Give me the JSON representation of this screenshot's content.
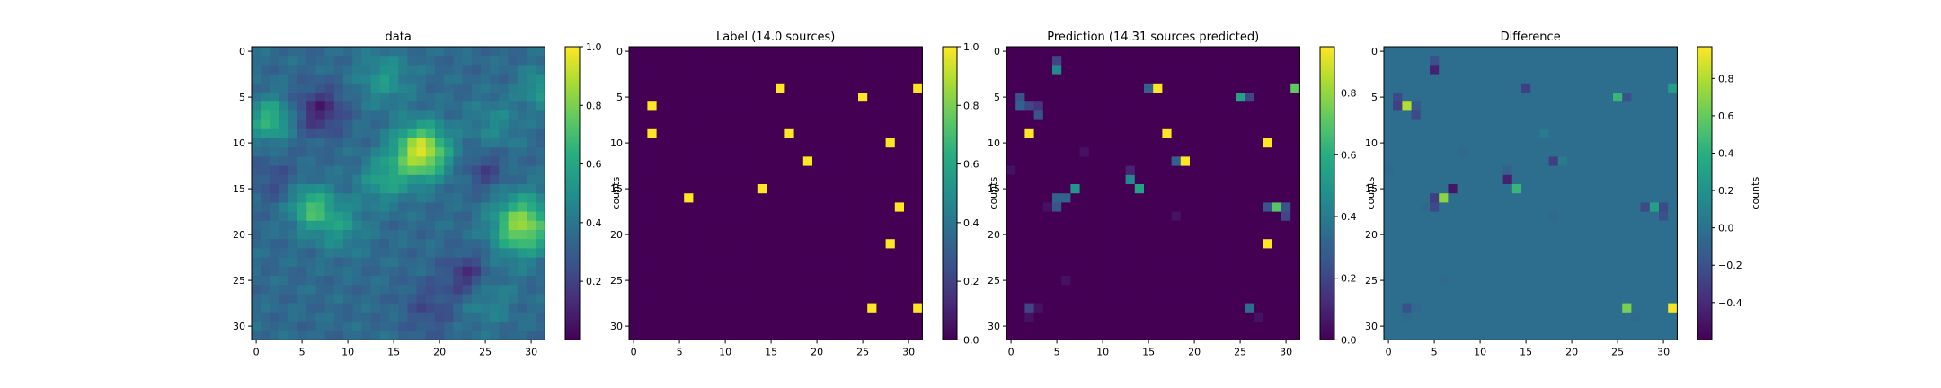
{
  "chart_data": [
    {
      "type": "heatmap",
      "title": "data",
      "grid": "32x32",
      "colormap": "viridis",
      "xlim": [
        0,
        31
      ],
      "ylim": [
        31,
        0
      ],
      "xticks": [
        0,
        5,
        10,
        15,
        20,
        25,
        30
      ],
      "yticks": [
        0,
        5,
        10,
        15,
        20,
        25,
        30
      ],
      "field": {
        "baseline": 0.35,
        "blobs": [
          {
            "x": 18,
            "y": 11,
            "amp": 0.6,
            "sigma": 2.0
          },
          {
            "x": 29,
            "y": 19,
            "amp": 0.5,
            "sigma": 2.2
          },
          {
            "x": 1.5,
            "y": 7.5,
            "amp": 0.32,
            "sigma": 1.6
          },
          {
            "x": 6,
            "y": 17,
            "amp": 0.32,
            "sigma": 1.6
          },
          {
            "x": 14,
            "y": 14,
            "amp": 0.22,
            "sigma": 1.8
          },
          {
            "x": 9,
            "y": 19,
            "amp": 0.18,
            "sigma": 2.0
          },
          {
            "x": 14,
            "y": 3,
            "amp": 0.18,
            "sigma": 2.0
          },
          {
            "x": 31,
            "y": 4,
            "amp": 0.2,
            "sigma": 1.5
          },
          {
            "x": 26,
            "y": 8,
            "amp": 0.12,
            "sigma": 2.0
          },
          {
            "x": 25,
            "y": 27,
            "amp": 0.12,
            "sigma": 2.0
          },
          {
            "x": 7,
            "y": 6.5,
            "amp": -0.25,
            "sigma": 1.8
          },
          {
            "x": 23,
            "y": 24.5,
            "amp": -0.22,
            "sigma": 1.6
          },
          {
            "x": 19,
            "y": 28,
            "amp": -0.12,
            "sigma": 2.0
          },
          {
            "x": 2,
            "y": 14,
            "amp": -0.1,
            "sigma": 1.8
          },
          {
            "x": 25,
            "y": 13,
            "amp": -0.15,
            "sigma": 1.5
          }
        ]
      },
      "colorbar": {
        "min": 0.0,
        "max": 1.0,
        "ticks": [
          "0.2",
          "0.4",
          "0.6",
          "0.8",
          "1.0"
        ],
        "label": "counts"
      }
    },
    {
      "type": "heatmap",
      "title": "Label (14.0 sources)",
      "grid": "32x32",
      "colormap": "viridis",
      "background": 0.0,
      "cells": [
        [
          16,
          4,
          1
        ],
        [
          31,
          4,
          1
        ],
        [
          25,
          5,
          1
        ],
        [
          2,
          6,
          1
        ],
        [
          2,
          9,
          1
        ],
        [
          17,
          9,
          1
        ],
        [
          28,
          10,
          1
        ],
        [
          19,
          12,
          1
        ],
        [
          14,
          15,
          1
        ],
        [
          6,
          16,
          1
        ],
        [
          29,
          17,
          1
        ],
        [
          28,
          21,
          1
        ],
        [
          26,
          28,
          1
        ],
        [
          31,
          28,
          1
        ]
      ],
      "colorbar": {
        "min": 0.0,
        "max": 1.0,
        "ticks": [
          "0.0",
          "0.2",
          "0.4",
          "0.6",
          "0.8",
          "1.0"
        ],
        "label": "counts"
      }
    },
    {
      "type": "heatmap",
      "title": "Prediction (14.31 sources predicted)",
      "grid": "32x32",
      "colormap": "viridis",
      "background": 0.0,
      "cells": [
        [
          5,
          1,
          0.2
        ],
        [
          5,
          2,
          0.45
        ],
        [
          15,
          4,
          0.3
        ],
        [
          16,
          4,
          0.95
        ],
        [
          31,
          4,
          0.72
        ],
        [
          1,
          5,
          0.25
        ],
        [
          25,
          5,
          0.55
        ],
        [
          26,
          5,
          0.2
        ],
        [
          1,
          6,
          0.3
        ],
        [
          2,
          6,
          0.2
        ],
        [
          3,
          6,
          0.15
        ],
        [
          3,
          7,
          0.25
        ],
        [
          2,
          9,
          0.95
        ],
        [
          17,
          9,
          0.95
        ],
        [
          28,
          10,
          0.95
        ],
        [
          8,
          11,
          0.05
        ],
        [
          18,
          12,
          0.3
        ],
        [
          19,
          12,
          0.95
        ],
        [
          0,
          13,
          0.05
        ],
        [
          13,
          13,
          0.1
        ],
        [
          13,
          14,
          0.45
        ],
        [
          7,
          15,
          0.5
        ],
        [
          14,
          15,
          0.55
        ],
        [
          5,
          16,
          0.3
        ],
        [
          6,
          16,
          0.3
        ],
        [
          5,
          17,
          0.25
        ],
        [
          4,
          17,
          0.05
        ],
        [
          28,
          17,
          0.25
        ],
        [
          29,
          17,
          0.7
        ],
        [
          30,
          17,
          0.25
        ],
        [
          30,
          18,
          0.2
        ],
        [
          18,
          18,
          0.05
        ],
        [
          28,
          21,
          0.95
        ],
        [
          6,
          25,
          0.05
        ],
        [
          2,
          28,
          0.2
        ],
        [
          3,
          28,
          0.05
        ],
        [
          26,
          28,
          0.35
        ],
        [
          2,
          29,
          0.05
        ],
        [
          27,
          29,
          0.05
        ]
      ],
      "colorbar": {
        "min": 0.0,
        "max": 0.95,
        "ticks": [
          "0.0",
          "0.2",
          "0.4",
          "0.6",
          "0.8"
        ],
        "label": "counts"
      }
    },
    {
      "type": "heatmap",
      "title": "Difference",
      "grid": "32x32",
      "colormap": "viridis",
      "background": -0.02,
      "cells": [
        [
          5,
          1,
          -0.2
        ],
        [
          5,
          2,
          -0.45
        ],
        [
          15,
          4,
          -0.3
        ],
        [
          31,
          4,
          0.28
        ],
        [
          1,
          5,
          -0.25
        ],
        [
          25,
          5,
          0.45
        ],
        [
          26,
          5,
          -0.2
        ],
        [
          1,
          6,
          -0.3
        ],
        [
          2,
          6,
          0.8
        ],
        [
          3,
          6,
          -0.15
        ],
        [
          3,
          7,
          -0.25
        ],
        [
          17,
          9,
          0.05
        ],
        [
          8,
          11,
          -0.05
        ],
        [
          18,
          12,
          -0.3
        ],
        [
          19,
          12,
          0.05
        ],
        [
          0,
          13,
          -0.05
        ],
        [
          13,
          13,
          -0.1
        ],
        [
          13,
          14,
          -0.45
        ],
        [
          7,
          15,
          -0.5
        ],
        [
          14,
          15,
          0.45
        ],
        [
          5,
          16,
          -0.3
        ],
        [
          6,
          16,
          0.7
        ],
        [
          5,
          17,
          -0.25
        ],
        [
          4,
          17,
          -0.05
        ],
        [
          28,
          17,
          -0.25
        ],
        [
          29,
          17,
          0.3
        ],
        [
          30,
          17,
          -0.25
        ],
        [
          30,
          18,
          -0.2
        ],
        [
          18,
          18,
          -0.05
        ],
        [
          6,
          25,
          -0.05
        ],
        [
          2,
          28,
          -0.2
        ],
        [
          3,
          28,
          -0.05
        ],
        [
          26,
          28,
          0.65
        ],
        [
          31,
          28,
          0.95
        ],
        [
          2,
          29,
          -0.05
        ],
        [
          27,
          29,
          -0.05
        ]
      ],
      "colorbar": {
        "min": -0.6,
        "max": 0.97,
        "ticks": [
          "−0.4",
          "−0.2",
          "0.0",
          "0.2",
          "0.4",
          "0.6",
          "0.8"
        ],
        "tick_values": [
          -0.4,
          -0.2,
          0.0,
          0.2,
          0.4,
          0.6,
          0.8
        ],
        "label": "counts"
      }
    }
  ]
}
